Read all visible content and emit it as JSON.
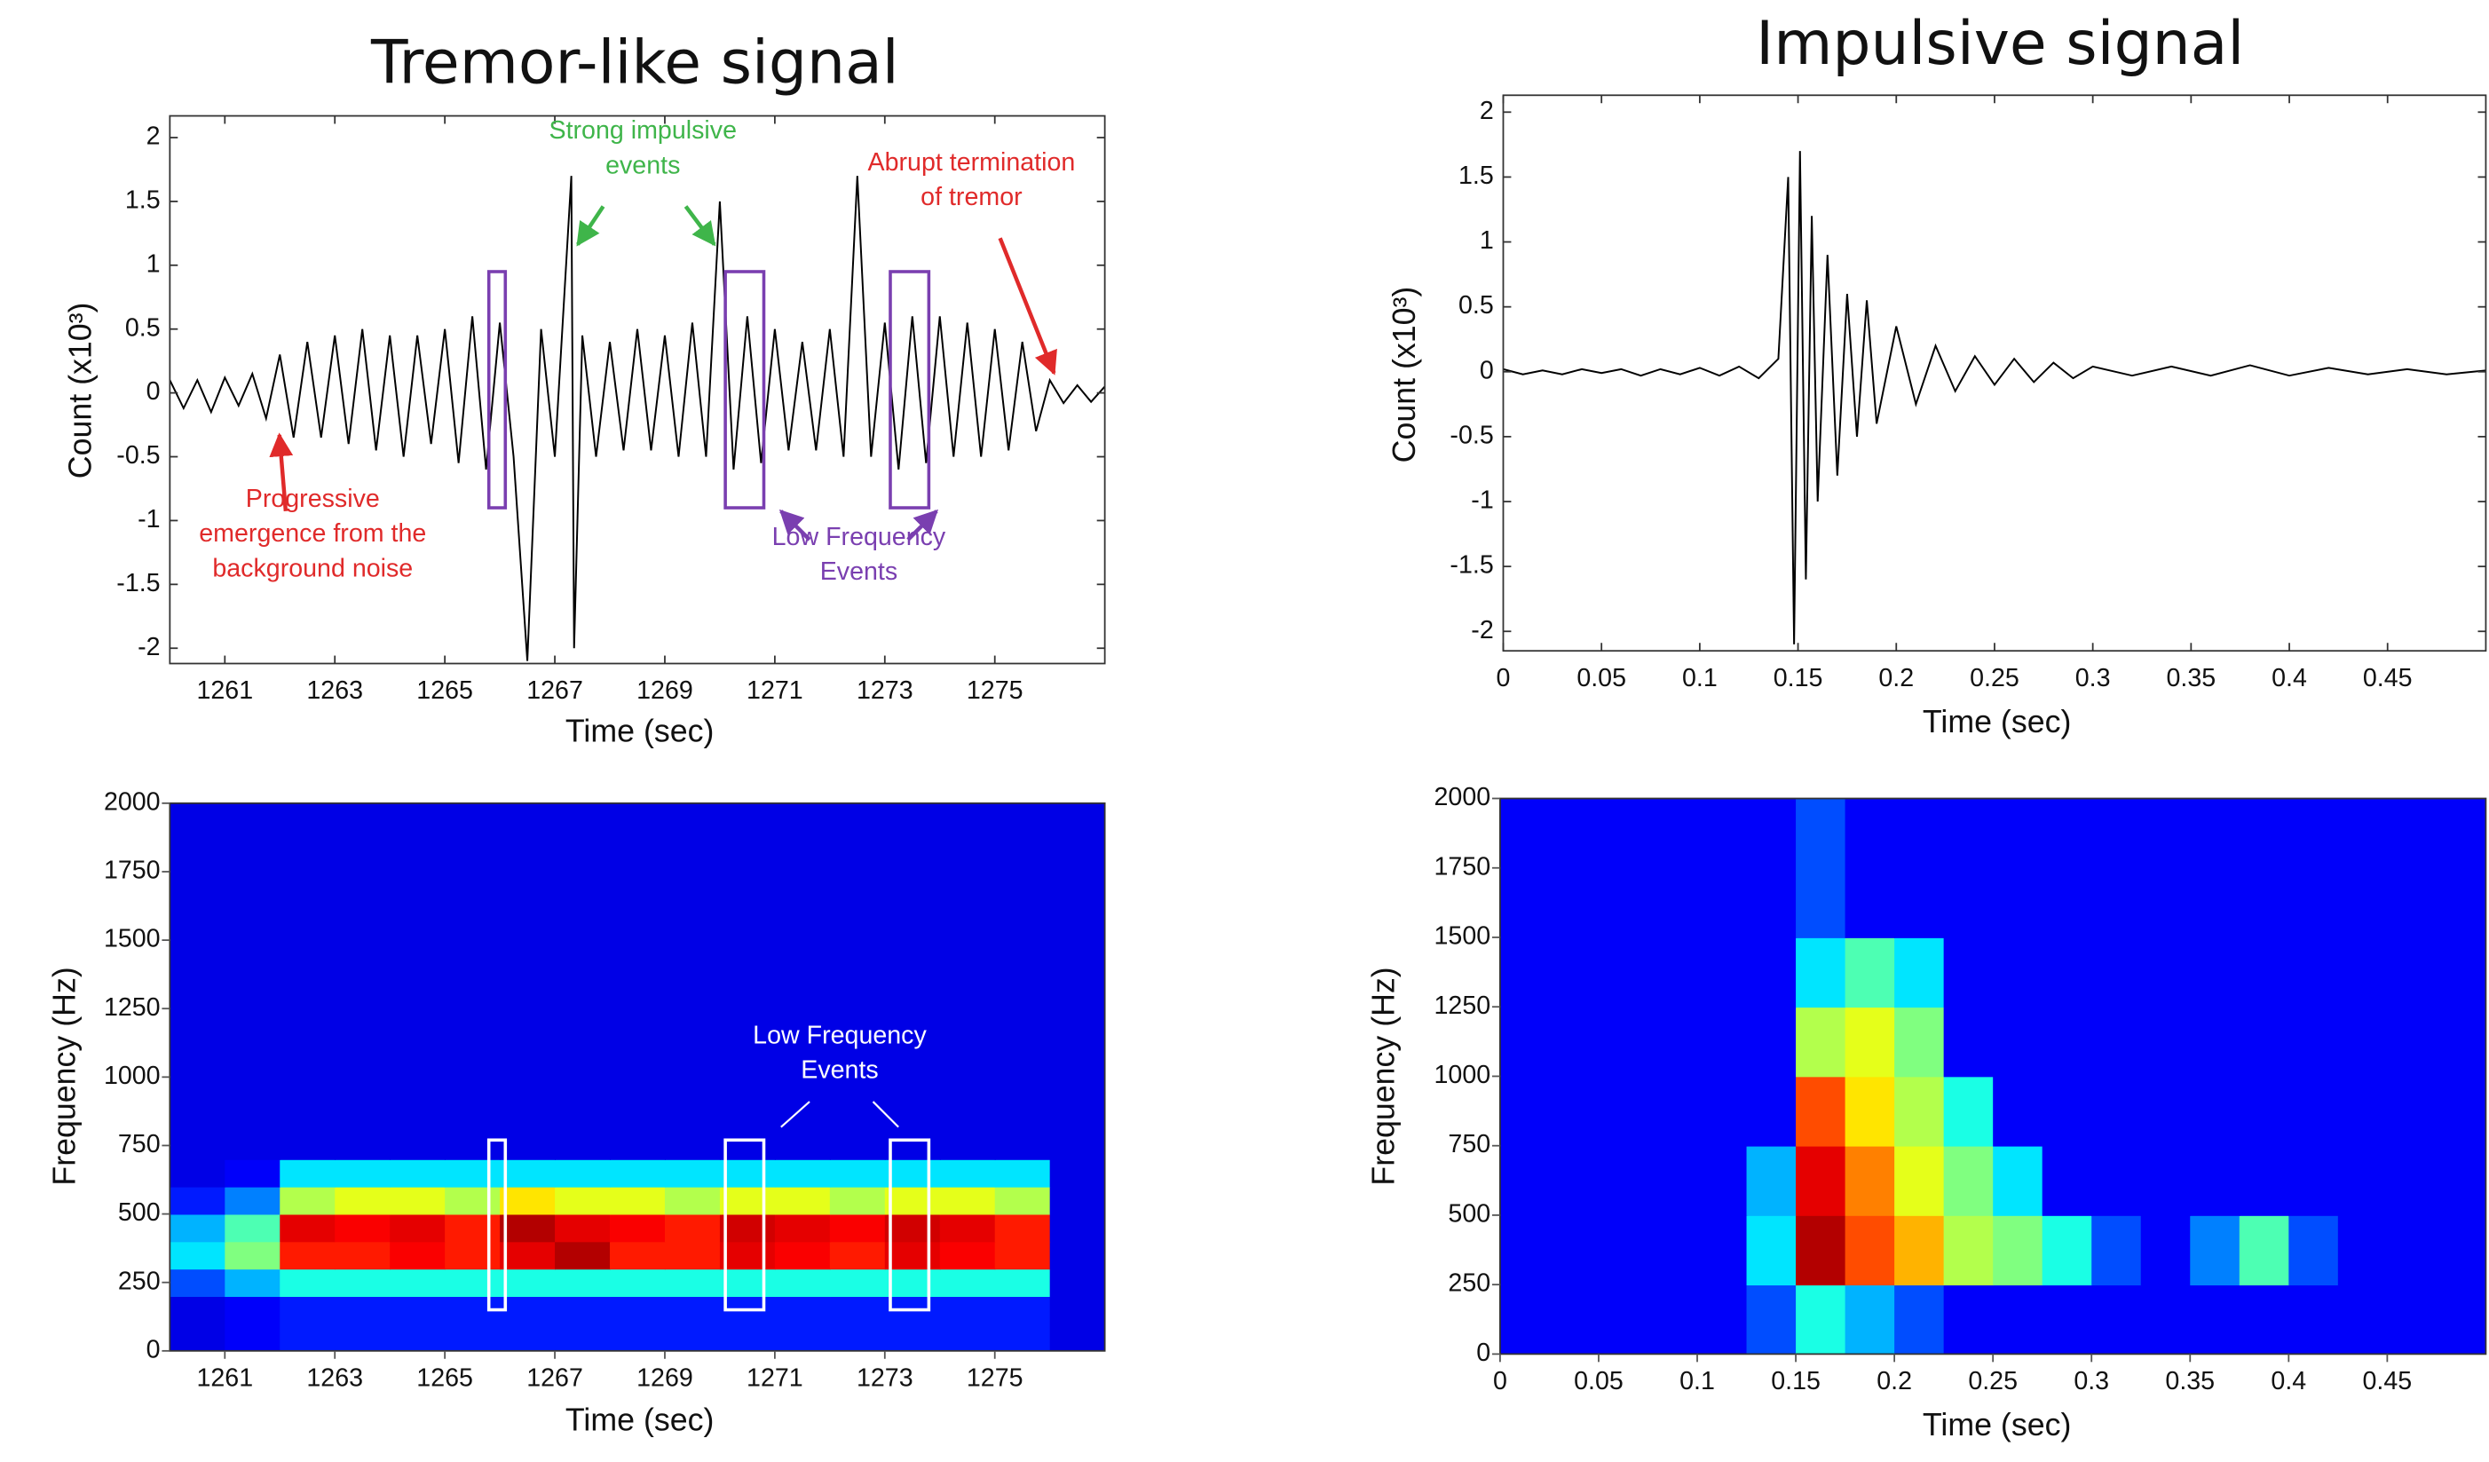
{
  "chart_data": [
    {
      "type": "line",
      "title": "Tremor-like signal",
      "xlabel": "Time (sec)",
      "ylabel": "Count (x10³)",
      "x": [
        1260,
        1260.25,
        1260.5,
        1260.75,
        1261,
        1261.25,
        1261.5,
        1261.75,
        1262,
        1262.25,
        1262.5,
        1262.75,
        1263,
        1263.25,
        1263.5,
        1263.75,
        1264,
        1264.25,
        1264.5,
        1264.75,
        1265,
        1265.25,
        1265.5,
        1265.75,
        1266,
        1266.25,
        1266.5,
        1266.75,
        1267,
        1267.3,
        1267.35,
        1267.5,
        1267.75,
        1268,
        1268.25,
        1268.5,
        1268.75,
        1269,
        1269.25,
        1269.5,
        1269.75,
        1270,
        1270.25,
        1270.5,
        1270.75,
        1271,
        1271.25,
        1271.5,
        1271.75,
        1272,
        1272.25,
        1272.5,
        1272.75,
        1273,
        1273.25,
        1273.5,
        1273.75,
        1274,
        1274.25,
        1274.5,
        1274.75,
        1275,
        1275.25,
        1275.5,
        1275.75,
        1276,
        1276.25,
        1276.5,
        1276.75,
        1277
      ],
      "series": [
        {
          "color": "#000000",
          "values": [
            0.1,
            -0.12,
            0.1,
            -0.15,
            0.12,
            -0.1,
            0.15,
            -0.2,
            0.3,
            -0.35,
            0.4,
            -0.35,
            0.45,
            -0.4,
            0.5,
            -0.45,
            0.45,
            -0.5,
            0.45,
            -0.4,
            0.5,
            -0.55,
            0.6,
            -0.6,
            0.55,
            -0.5,
            -2.1,
            0.5,
            -0.5,
            1.7,
            -2.0,
            0.45,
            -0.5,
            0.4,
            -0.45,
            0.5,
            -0.45,
            0.45,
            -0.5,
            0.55,
            -0.5,
            1.5,
            -0.6,
            0.6,
            -0.55,
            0.5,
            -0.45,
            0.4,
            -0.45,
            0.5,
            -0.5,
            1.7,
            -0.5,
            0.55,
            -0.6,
            0.6,
            -0.55,
            0.6,
            -0.5,
            0.55,
            -0.5,
            0.5,
            -0.45,
            0.4,
            -0.3,
            0.1,
            -0.08,
            0.06,
            -0.07,
            0.05
          ]
        }
      ],
      "xlim": [
        1260,
        1277
      ],
      "xticks": [
        1261,
        1263,
        1265,
        1267,
        1269,
        1271,
        1273,
        1275
      ],
      "ylim": [
        -2.12,
        2.17
      ],
      "yticks": [
        -2,
        -1.5,
        -1,
        -0.5,
        0,
        0.5,
        1,
        1.5,
        2
      ],
      "boxes": [
        {
          "x": [
            1265.8,
            1266.1
          ],
          "y": [
            -0.9,
            0.95
          ],
          "color": "#7a3fb0"
        },
        {
          "x": [
            1270.1,
            1270.8
          ],
          "y": [
            -0.9,
            0.95
          ],
          "color": "#7a3fb0"
        },
        {
          "x": [
            1273.1,
            1273.8
          ],
          "y": [
            -0.9,
            0.95
          ],
          "color": "#7a3fb0"
        }
      ],
      "annotations": [
        {
          "text": [
            "Strong impulsive",
            "events"
          ],
          "color": "#3fb54a"
        },
        {
          "text": [
            "Abrupt termination",
            "of tremor"
          ],
          "color": "#e02a2a"
        },
        {
          "text": [
            "Progressive",
            "emergence from the",
            "background noise"
          ],
          "color": "#e02a2a"
        },
        {
          "text": [
            "Low Frequency",
            "Events"
          ],
          "color": "#7a3fb0"
        }
      ]
    },
    {
      "type": "heatmap",
      "xlabel": "Time (sec)",
      "ylabel": "Frequency (Hz)",
      "colormap": "jet",
      "zlim": [
        0,
        1
      ],
      "x_edges": [
        1260,
        1261,
        1262,
        1263,
        1264,
        1265,
        1266,
        1267,
        1268,
        1269,
        1270,
        1271,
        1272,
        1273,
        1274,
        1275,
        1276,
        1277
      ],
      "y_edges": [
        0,
        200,
        300,
        400,
        500,
        600,
        700,
        2000
      ],
      "values": [
        [
          0.1,
          0.12,
          0.15,
          0.15,
          0.15,
          0.15,
          0.15,
          0.15,
          0.15,
          0.15,
          0.15,
          0.15,
          0.15,
          0.15,
          0.15,
          0.15,
          0.1
        ],
        [
          0.2,
          0.3,
          0.4,
          0.4,
          0.4,
          0.4,
          0.4,
          0.4,
          0.4,
          0.4,
          0.4,
          0.4,
          0.4,
          0.4,
          0.4,
          0.4,
          0.1
        ],
        [
          0.35,
          0.5,
          0.85,
          0.85,
          0.88,
          0.85,
          0.9,
          0.95,
          0.85,
          0.85,
          0.9,
          0.88,
          0.85,
          0.9,
          0.88,
          0.85,
          0.1
        ],
        [
          0.3,
          0.45,
          0.9,
          0.88,
          0.9,
          0.85,
          0.95,
          0.9,
          0.88,
          0.85,
          0.92,
          0.9,
          0.88,
          0.92,
          0.9,
          0.85,
          0.1
        ],
        [
          0.15,
          0.25,
          0.55,
          0.6,
          0.6,
          0.55,
          0.65,
          0.6,
          0.6,
          0.55,
          0.6,
          0.6,
          0.55,
          0.6,
          0.6,
          0.55,
          0.1
        ],
        [
          0.1,
          0.12,
          0.35,
          0.35,
          0.35,
          0.35,
          0.35,
          0.35,
          0.35,
          0.35,
          0.35,
          0.35,
          0.35,
          0.35,
          0.35,
          0.35,
          0.1
        ],
        [
          0.1,
          0.1,
          0.1,
          0.1,
          0.1,
          0.1,
          0.1,
          0.1,
          0.1,
          0.1,
          0.1,
          0.1,
          0.1,
          0.1,
          0.1,
          0.1,
          0.1
        ]
      ],
      "xlim": [
        1260,
        1277
      ],
      "xticks": [
        1261,
        1263,
        1265,
        1267,
        1269,
        1271,
        1273,
        1275
      ],
      "ylim": [
        0,
        2000
      ],
      "yticks": [
        0,
        250,
        500,
        750,
        1000,
        1250,
        1500,
        1750,
        2000
      ],
      "boxes": [
        {
          "x": [
            1265.8,
            1266.1
          ],
          "y": [
            150,
            770
          ],
          "color": "#ffffff"
        },
        {
          "x": [
            1270.1,
            1270.8
          ],
          "y": [
            150,
            770
          ],
          "color": "#ffffff"
        },
        {
          "x": [
            1273.1,
            1273.8
          ],
          "y": [
            150,
            770
          ],
          "color": "#ffffff"
        }
      ],
      "annotations": [
        {
          "text": [
            "Low Frequency",
            "Events"
          ],
          "color": "#ffffff"
        }
      ]
    },
    {
      "type": "line",
      "title": "Impulsive signal",
      "xlabel": "Time (sec)",
      "ylabel": "Count (x10³)",
      "x": [
        0,
        0.01,
        0.02,
        0.03,
        0.04,
        0.05,
        0.06,
        0.07,
        0.08,
        0.09,
        0.1,
        0.11,
        0.12,
        0.13,
        0.14,
        0.145,
        0.148,
        0.151,
        0.154,
        0.157,
        0.16,
        0.165,
        0.17,
        0.175,
        0.18,
        0.185,
        0.19,
        0.2,
        0.21,
        0.22,
        0.23,
        0.24,
        0.25,
        0.26,
        0.27,
        0.28,
        0.29,
        0.3,
        0.32,
        0.34,
        0.36,
        0.38,
        0.4,
        0.42,
        0.44,
        0.46,
        0.48,
        0.5
      ],
      "series": [
        {
          "color": "#000000",
          "values": [
            0.02,
            -0.02,
            0.01,
            -0.02,
            0.02,
            -0.01,
            0.02,
            -0.03,
            0.02,
            -0.02,
            0.03,
            -0.03,
            0.04,
            -0.05,
            0.1,
            1.5,
            -2.1,
            1.7,
            -1.6,
            1.2,
            -1.0,
            0.9,
            -0.8,
            0.6,
            -0.5,
            0.55,
            -0.4,
            0.35,
            -0.25,
            0.2,
            -0.15,
            0.12,
            -0.1,
            0.1,
            -0.08,
            0.07,
            -0.05,
            0.04,
            -0.03,
            0.04,
            -0.03,
            0.05,
            -0.03,
            0.03,
            -0.02,
            0.02,
            -0.02,
            0.01
          ]
        }
      ],
      "xlim": [
        0,
        0.5
      ],
      "xticks": [
        0,
        0.05,
        0.1,
        0.15,
        0.2,
        0.25,
        0.3,
        0.35,
        0.4,
        0.45
      ],
      "ylim": [
        -2.15,
        2.13
      ],
      "yticks": [
        -2,
        -1.5,
        -1,
        -0.5,
        0,
        0.5,
        1,
        1.5,
        2
      ]
    },
    {
      "type": "heatmap",
      "xlabel": "Time (sec)",
      "ylabel": "Frequency (Hz)",
      "colormap": "jet",
      "zlim": [
        0,
        1
      ],
      "x_edges": [
        0,
        0.025,
        0.05,
        0.075,
        0.1,
        0.125,
        0.15,
        0.175,
        0.2,
        0.225,
        0.25,
        0.275,
        0.3,
        0.325,
        0.35,
        0.375,
        0.4,
        0.425,
        0.45,
        0.475,
        0.5
      ],
      "y_edges": [
        0,
        250,
        500,
        750,
        1000,
        1250,
        1500,
        2000
      ],
      "values": [
        [
          0.12,
          0.12,
          0.12,
          0.12,
          0.12,
          0.2,
          0.4,
          0.3,
          0.2,
          0.12,
          0.12,
          0.12,
          0.12,
          0.12,
          0.12,
          0.12,
          0.12,
          0.12,
          0.12,
          0.12
        ],
        [
          0.12,
          0.12,
          0.12,
          0.12,
          0.12,
          0.35,
          0.95,
          0.8,
          0.7,
          0.55,
          0.5,
          0.4,
          0.2,
          0.12,
          0.25,
          0.45,
          0.2,
          0.12,
          0.12,
          0.12
        ],
        [
          0.12,
          0.12,
          0.12,
          0.12,
          0.12,
          0.3,
          0.9,
          0.75,
          0.6,
          0.5,
          0.35,
          0.12,
          0.12,
          0.12,
          0.12,
          0.12,
          0.12,
          0.12,
          0.12,
          0.12
        ],
        [
          0.12,
          0.12,
          0.12,
          0.12,
          0.12,
          0.12,
          0.8,
          0.65,
          0.55,
          0.4,
          0.12,
          0.12,
          0.12,
          0.12,
          0.12,
          0.12,
          0.12,
          0.12,
          0.12,
          0.12
        ],
        [
          0.12,
          0.12,
          0.12,
          0.12,
          0.12,
          0.12,
          0.55,
          0.6,
          0.5,
          0.12,
          0.12,
          0.12,
          0.12,
          0.12,
          0.12,
          0.12,
          0.12,
          0.12,
          0.12,
          0.12
        ],
        [
          0.12,
          0.12,
          0.12,
          0.12,
          0.12,
          0.12,
          0.35,
          0.45,
          0.35,
          0.12,
          0.12,
          0.12,
          0.12,
          0.12,
          0.12,
          0.12,
          0.12,
          0.12,
          0.12,
          0.12
        ],
        [
          0.12,
          0.12,
          0.12,
          0.12,
          0.12,
          0.12,
          0.2,
          0.12,
          0.12,
          0.12,
          0.12,
          0.12,
          0.12,
          0.12,
          0.12,
          0.12,
          0.12,
          0.12,
          0.12,
          0.12
        ]
      ],
      "xlim": [
        0,
        0.5
      ],
      "xticks": [
        0,
        0.05,
        0.1,
        0.15,
        0.2,
        0.25,
        0.3,
        0.35,
        0.4,
        0.45
      ],
      "ylim": [
        0,
        2000
      ],
      "yticks": [
        0,
        250,
        500,
        750,
        1000,
        1250,
        1500,
        1750,
        2000
      ]
    }
  ]
}
